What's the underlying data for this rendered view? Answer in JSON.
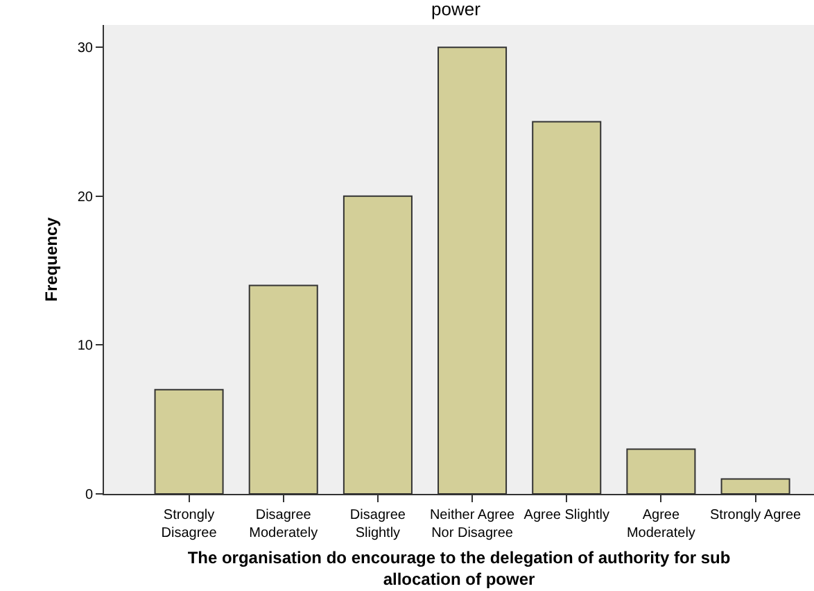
{
  "chart_data": {
    "type": "bar",
    "title": "power",
    "xlabel": "The organisation do encourage to the delegation of authority for sub allocation of power",
    "ylabel": "Frequency",
    "categories": [
      "Strongly Disagree",
      "Disagree Moderately",
      "Disagree Slightly",
      "Neither Agree Nor Disagree",
      "Agree Slightly",
      "Agree Moderately",
      "Strongly Agree"
    ],
    "values": [
      7,
      14,
      20,
      30,
      25,
      3,
      1
    ],
    "color": "#d3cf98",
    "ylim": [
      0,
      31.5
    ],
    "yticks": [
      0,
      10,
      20,
      30
    ],
    "grid": false
  }
}
